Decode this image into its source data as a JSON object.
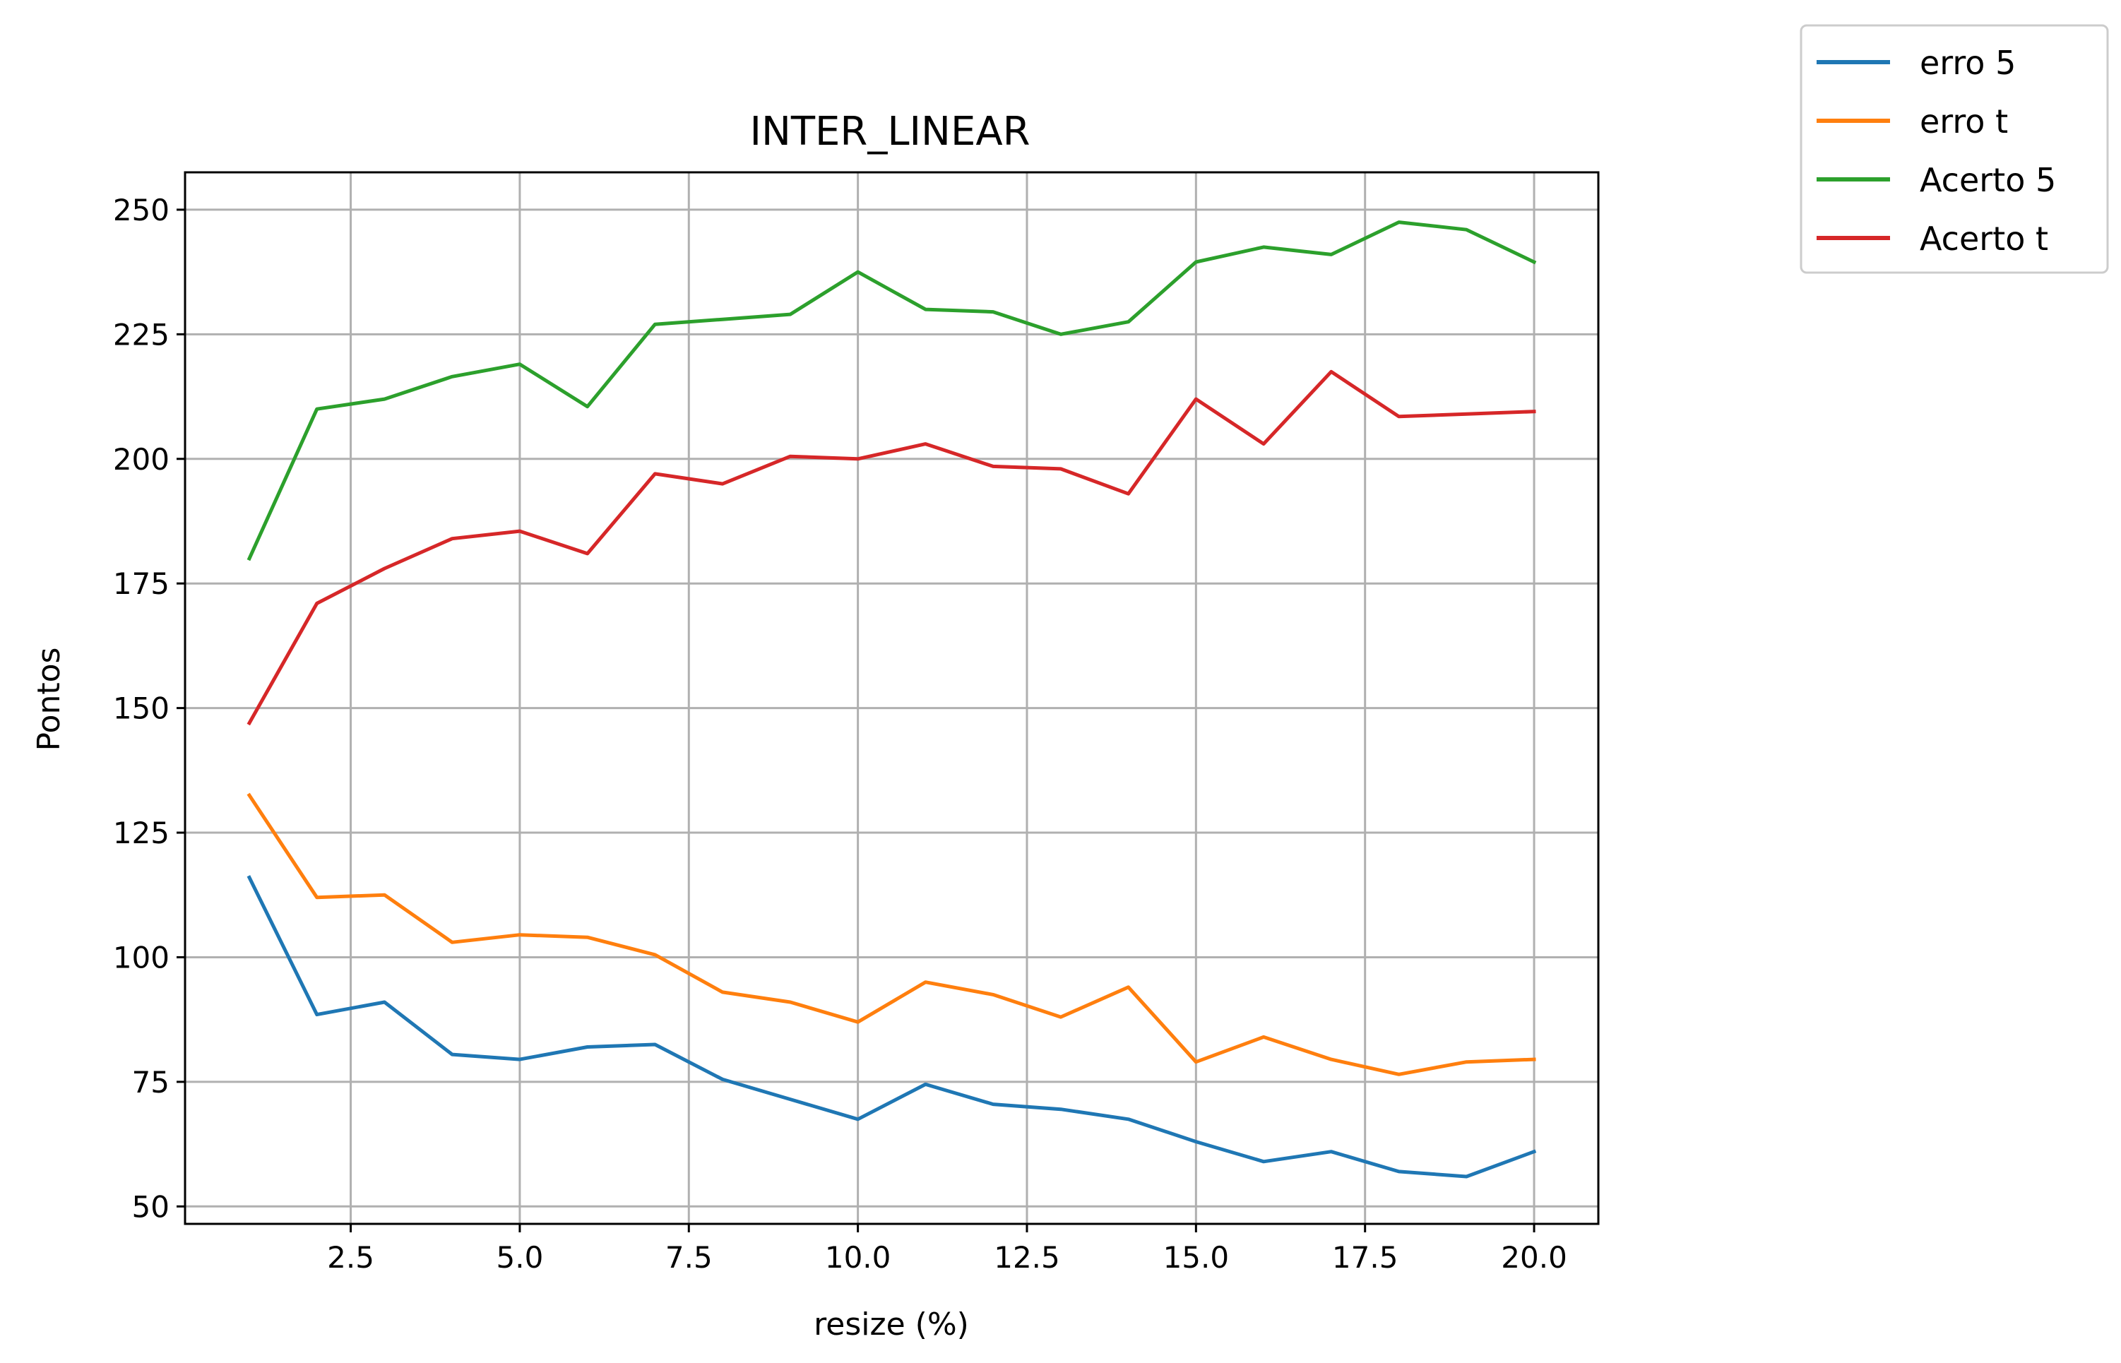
{
  "chart_data": {
    "type": "line",
    "title": "INTER_LINEAR",
    "xlabel": "resize (%)",
    "ylabel": "Pontos",
    "xlim": [
      0.05,
      20.95
    ],
    "ylim": [
      46.5,
      257.5
    ],
    "xticks": [
      2.5,
      5.0,
      7.5,
      10.0,
      12.5,
      15.0,
      17.5,
      20.0
    ],
    "xtick_labels": [
      "2.5",
      "5.0",
      "7.5",
      "10.0",
      "12.5",
      "15.0",
      "17.5",
      "20.0"
    ],
    "yticks": [
      50,
      75,
      100,
      125,
      150,
      175,
      200,
      225,
      250
    ],
    "ytick_labels": [
      "50",
      "75",
      "100",
      "125",
      "150",
      "175",
      "200",
      "225",
      "250"
    ],
    "grid": true,
    "legend_position": "outside top-right",
    "x": [
      1,
      2,
      3,
      4,
      5,
      6,
      7,
      8,
      9,
      10,
      11,
      12,
      13,
      14,
      15,
      16,
      17,
      18,
      19,
      20
    ],
    "series": [
      {
        "name": "erro 5",
        "color": "#1f77b4",
        "values": [
          116,
          88.5,
          91,
          80.5,
          79.5,
          82,
          82.5,
          75.5,
          71.5,
          67.5,
          74.5,
          70.5,
          69.5,
          67.5,
          63,
          59,
          61,
          57,
          56,
          61
        ]
      },
      {
        "name": "erro t",
        "color": "#ff7f0e",
        "values": [
          132.5,
          112,
          112.5,
          103,
          104.5,
          104,
          100.5,
          93,
          91,
          87,
          95,
          92.5,
          88,
          94,
          79,
          84,
          79.5,
          76.5,
          79,
          79.5
        ]
      },
      {
        "name": "Acerto 5",
        "color": "#2ca02c",
        "values": [
          180,
          210,
          212,
          216.5,
          219,
          210.5,
          227,
          228,
          229,
          237.5,
          230,
          229.5,
          225,
          227.5,
          239.5,
          242.5,
          241,
          247.5,
          246,
          239.5
        ]
      },
      {
        "name": "Acerto t",
        "color": "#d62728",
        "values": [
          147,
          171,
          178,
          184,
          185.5,
          181,
          197,
          195,
          200.5,
          200,
          203,
          198.5,
          198,
          193,
          212,
          203,
          217.5,
          208.5,
          209,
          209.5
        ]
      }
    ]
  }
}
